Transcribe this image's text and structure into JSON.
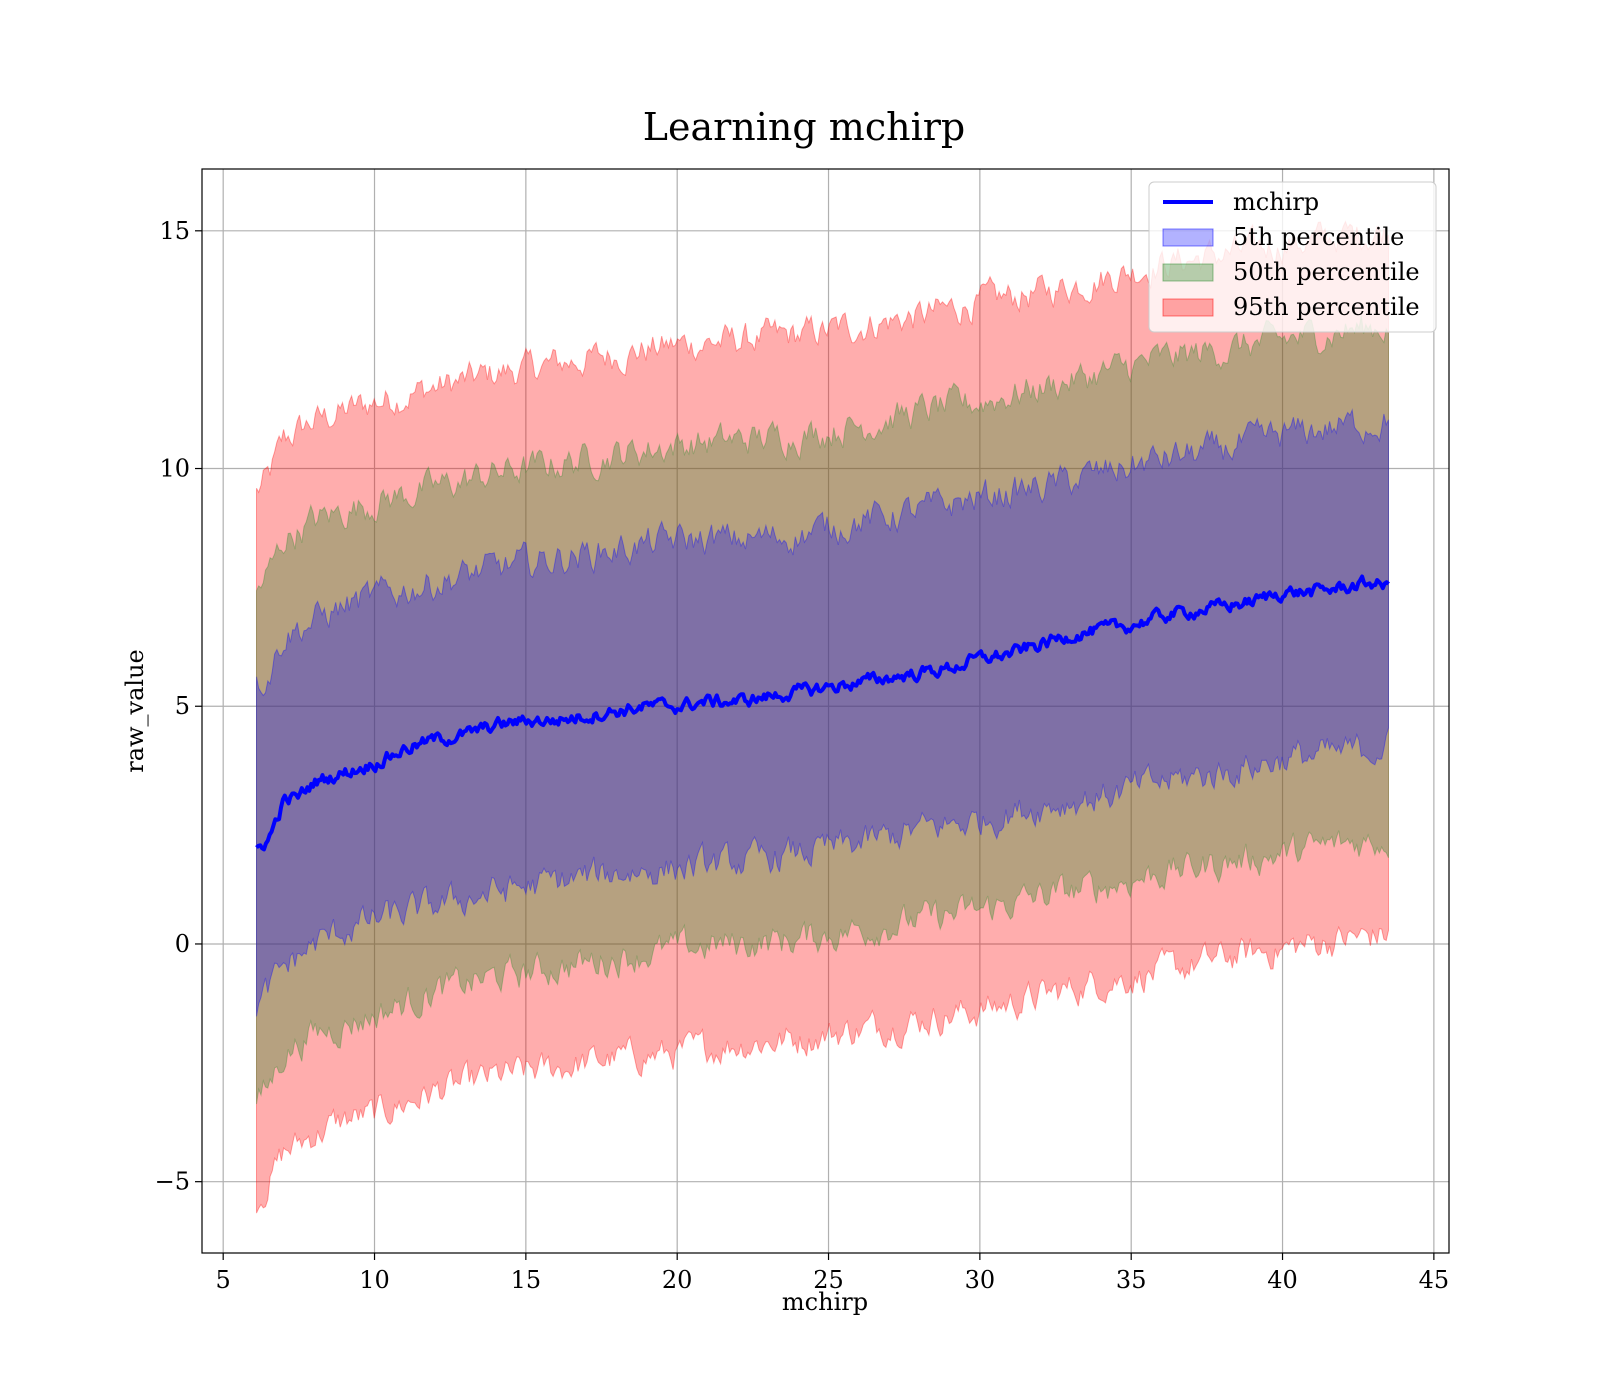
{
  "chart_data": {
    "type": "line",
    "title": "Learning mchirp",
    "xlabel": "mchirp",
    "ylabel": "raw_value",
    "xlim": [
      4.3,
      45.5
    ],
    "ylim": [
      -6.5,
      16.3
    ],
    "xticks": [
      5,
      10,
      15,
      20,
      25,
      30,
      35,
      40,
      45
    ],
    "yticks": [
      -5,
      0,
      5,
      10,
      15
    ],
    "ytick_labels": [
      "−5",
      "0",
      "5",
      "10",
      "15"
    ],
    "grid": true,
    "legend_position": "top-right",
    "x_range": [
      6.1,
      43.5
    ],
    "series": [
      {
        "name": "mchirp",
        "kind": "line",
        "color": "#0000ff",
        "x": [
          6.1,
          6.5,
          7.0,
          7.5,
          8.0,
          9.0,
          10.0,
          11.0,
          12.0,
          13.0,
          14.0,
          15.0,
          16.0,
          17.0,
          18.0,
          19.0,
          20.0,
          21.0,
          22.0,
          23.0,
          24.0,
          25.0,
          26.0,
          27.0,
          28.0,
          29.0,
          30.0,
          31.0,
          32.0,
          33.0,
          34.0,
          35.0,
          36.0,
          37.0,
          38.0,
          39.0,
          40.0,
          41.0,
          42.0,
          43.0,
          43.5
        ],
        "y": [
          2.0,
          2.2,
          3.0,
          3.1,
          3.4,
          3.6,
          3.8,
          4.1,
          4.3,
          4.4,
          4.6,
          4.7,
          4.7,
          4.8,
          4.9,
          5.0,
          5.0,
          5.1,
          5.1,
          5.2,
          5.3,
          5.4,
          5.5,
          5.6,
          5.7,
          5.8,
          6.0,
          6.1,
          6.3,
          6.5,
          6.6,
          6.7,
          6.9,
          7.0,
          7.1,
          7.2,
          7.4,
          7.4,
          7.5,
          7.6,
          7.5
        ]
      },
      {
        "name": "5th percentile",
        "kind": "band",
        "color": "#0000ff",
        "opacity": 0.3,
        "x": [
          6.1,
          6.5,
          7.0,
          8.0,
          9.0,
          10.0,
          12.0,
          14.0,
          16.0,
          18.0,
          20.0,
          22.0,
          24.0,
          26.0,
          28.0,
          30.0,
          32.0,
          34.0,
          36.0,
          38.0,
          40.0,
          42.0,
          43.5
        ],
        "lower": [
          -1.3,
          -1.0,
          -0.5,
          0.0,
          0.3,
          0.5,
          0.8,
          1.1,
          1.3,
          1.5,
          1.6,
          1.7,
          1.9,
          2.1,
          2.4,
          2.6,
          2.9,
          3.1,
          3.4,
          3.6,
          3.9,
          4.0,
          4.2
        ],
        "upper": [
          5.4,
          5.7,
          6.5,
          6.8,
          7.1,
          7.3,
          7.6,
          7.9,
          8.1,
          8.3,
          8.5,
          8.5,
          8.6,
          8.9,
          9.1,
          9.4,
          9.6,
          9.9,
          10.2,
          10.4,
          10.7,
          10.9,
          11.0
        ]
      },
      {
        "name": "50th percentile",
        "kind": "band",
        "color": "#2e8b2e",
        "opacity": 0.35,
        "x": [
          6.1,
          6.5,
          7.0,
          8.0,
          9.0,
          10.0,
          12.0,
          14.0,
          16.0,
          18.0,
          20.0,
          22.0,
          24.0,
          26.0,
          28.0,
          30.0,
          32.0,
          34.0,
          36.0,
          38.0,
          40.0,
          42.0,
          43.5
        ],
        "lower": [
          -3.4,
          -3.0,
          -2.3,
          -1.9,
          -1.7,
          -1.5,
          -1.0,
          -0.7,
          -0.5,
          -0.3,
          -0.1,
          0.0,
          0.1,
          0.3,
          0.5,
          0.7,
          1.0,
          1.2,
          1.5,
          1.7,
          1.9,
          2.1,
          2.2
        ],
        "upper": [
          7.4,
          7.8,
          8.5,
          8.9,
          9.1,
          9.3,
          9.6,
          9.9,
          10.1,
          10.3,
          10.5,
          10.6,
          10.7,
          10.9,
          11.2,
          11.4,
          11.7,
          12.0,
          12.3,
          12.5,
          12.7,
          12.9,
          13.0
        ]
      },
      {
        "name": "95th percentile",
        "kind": "band",
        "color": "#ff0000",
        "opacity": 0.32,
        "x": [
          6.1,
          6.5,
          7.0,
          8.0,
          9.0,
          10.0,
          12.0,
          14.0,
          16.0,
          18.0,
          20.0,
          22.0,
          24.0,
          26.0,
          28.0,
          30.0,
          32.0,
          34.0,
          36.0,
          38.0,
          40.0,
          42.0,
          43.5
        ],
        "lower": [
          -5.4,
          -5.0,
          -4.4,
          -4.0,
          -3.7,
          -3.6,
          -3.1,
          -2.8,
          -2.6,
          -2.4,
          -2.3,
          -2.1,
          -2.0,
          -1.8,
          -1.6,
          -1.4,
          -1.1,
          -0.8,
          -0.6,
          -0.3,
          -0.1,
          0.1,
          0.2
        ],
        "upper": [
          9.5,
          9.8,
          10.6,
          11.0,
          11.2,
          11.4,
          11.7,
          12.0,
          12.2,
          12.4,
          12.6,
          12.7,
          12.8,
          13.0,
          13.2,
          13.5,
          13.7,
          14.0,
          14.3,
          14.5,
          14.7,
          14.9,
          15.0
        ]
      }
    ],
    "legend": [
      {
        "label": "mchirp",
        "kind": "line",
        "color": "#0000ff"
      },
      {
        "label": "5th percentile",
        "kind": "patch",
        "color": "#0000ff",
        "opacity": 0.3
      },
      {
        "label": "50th percentile",
        "kind": "patch",
        "color": "#2e8b2e",
        "opacity": 0.35
      },
      {
        "label": "95th percentile",
        "kind": "patch",
        "color": "#ff0000",
        "opacity": 0.32
      }
    ]
  }
}
